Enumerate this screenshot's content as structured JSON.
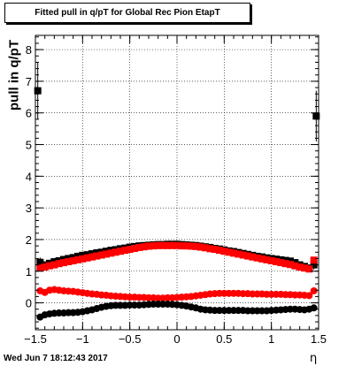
{
  "title": "Fitted pull in q/pT for Global Rec Pion EtapT",
  "timestamp": "Wed Jun  7 18:12:43 2017",
  "chart_data": {
    "type": "scatter",
    "xlabel": "η",
    "ylabel": "pull in q/pT",
    "xlim": [
      -1.5,
      1.5
    ],
    "ylim": [
      -0.85,
      8.45
    ],
    "grid": true,
    "xticks": [
      -1.5,
      -1,
      -0.5,
      0,
      0.5,
      1,
      1.5
    ],
    "xtick_labels": [
      "−1.5",
      "−1",
      "−0.5",
      "0",
      "0.5",
      "1",
      "1.5"
    ],
    "yticks": [
      0,
      1,
      2,
      3,
      4,
      5,
      6,
      7,
      8
    ],
    "ytick_labels": [
      "0",
      "1",
      "2",
      "3",
      "4",
      "5",
      "6",
      "7",
      "8"
    ],
    "series": [
      {
        "color": "#000000",
        "marker": "square",
        "x": [
          -1.45,
          -1.4,
          -1.35,
          -1.3,
          -1.25,
          -1.2,
          -1.15,
          -1.1,
          -1.05,
          -1.0,
          -0.95,
          -0.9,
          -0.85,
          -0.8,
          -0.75,
          -0.7,
          -0.65,
          -0.6,
          -0.55,
          -0.5,
          -0.45,
          -0.4,
          -0.35,
          -0.3,
          -0.25,
          -0.2,
          -0.15,
          -0.1,
          -0.05,
          0.0,
          0.05,
          0.1,
          0.15,
          0.2,
          0.25,
          0.3,
          0.35,
          0.4,
          0.45,
          0.5,
          0.55,
          0.6,
          0.65,
          0.7,
          0.75,
          0.8,
          0.85,
          0.9,
          0.95,
          1.0,
          1.05,
          1.1,
          1.15,
          1.2,
          1.25,
          1.3,
          1.35,
          1.4,
          1.45
        ],
        "y": [
          1.28,
          1.2,
          1.25,
          1.3,
          1.33,
          1.37,
          1.4,
          1.43,
          1.47,
          1.5,
          1.52,
          1.55,
          1.58,
          1.6,
          1.63,
          1.66,
          1.68,
          1.71,
          1.73,
          1.76,
          1.78,
          1.8,
          1.81,
          1.82,
          1.83,
          1.84,
          1.84,
          1.85,
          1.85,
          1.85,
          1.84,
          1.83,
          1.82,
          1.81,
          1.79,
          1.77,
          1.75,
          1.72,
          1.7,
          1.67,
          1.64,
          1.62,
          1.59,
          1.56,
          1.53,
          1.5,
          1.47,
          1.45,
          1.42,
          1.4,
          1.38,
          1.36,
          1.34,
          1.32,
          1.27,
          1.2,
          1.15,
          1.1,
          1.2
        ],
        "y_err": [
          0.15,
          0.06,
          0.05,
          0.05,
          0.05,
          0.05,
          0.04,
          0.04,
          0.04,
          0.04,
          0.04,
          0.04,
          0.04,
          0.04,
          0.04,
          0.04,
          0.04,
          0.04,
          0.04,
          0.04,
          0.04,
          0.04,
          0.04,
          0.04,
          0.04,
          0.04,
          0.04,
          0.04,
          0.04,
          0.04,
          0.04,
          0.04,
          0.04,
          0.04,
          0.04,
          0.04,
          0.04,
          0.04,
          0.04,
          0.04,
          0.04,
          0.04,
          0.04,
          0.04,
          0.04,
          0.04,
          0.04,
          0.04,
          0.04,
          0.04,
          0.04,
          0.04,
          0.04,
          0.04,
          0.05,
          0.05,
          0.05,
          0.06,
          0.15
        ]
      },
      {
        "color": "#ff0000",
        "marker": "square",
        "x": [
          -1.45,
          -1.4,
          -1.35,
          -1.3,
          -1.25,
          -1.2,
          -1.15,
          -1.1,
          -1.05,
          -1.0,
          -0.95,
          -0.9,
          -0.85,
          -0.8,
          -0.75,
          -0.7,
          -0.65,
          -0.6,
          -0.55,
          -0.5,
          -0.45,
          -0.4,
          -0.35,
          -0.3,
          -0.25,
          -0.2,
          -0.15,
          -0.1,
          -0.05,
          0.0,
          0.05,
          0.1,
          0.15,
          0.2,
          0.25,
          0.3,
          0.35,
          0.4,
          0.45,
          0.5,
          0.55,
          0.6,
          0.65,
          0.7,
          0.75,
          0.8,
          0.85,
          0.9,
          0.95,
          1.0,
          1.05,
          1.1,
          1.15,
          1.2,
          1.25,
          1.3,
          1.35,
          1.4,
          1.45
        ],
        "y": [
          1.1,
          1.13,
          1.17,
          1.2,
          1.24,
          1.27,
          1.3,
          1.33,
          1.36,
          1.39,
          1.42,
          1.45,
          1.48,
          1.51,
          1.54,
          1.57,
          1.6,
          1.63,
          1.66,
          1.69,
          1.72,
          1.75,
          1.77,
          1.79,
          1.8,
          1.81,
          1.81,
          1.81,
          1.81,
          1.81,
          1.8,
          1.8,
          1.79,
          1.78,
          1.76,
          1.74,
          1.71,
          1.69,
          1.66,
          1.63,
          1.6,
          1.57,
          1.54,
          1.51,
          1.48,
          1.45,
          1.42,
          1.39,
          1.36,
          1.33,
          1.3,
          1.27,
          1.24,
          1.21,
          1.17,
          1.13,
          1.1,
          1.07,
          1.35
        ],
        "y_err": [
          0.05,
          0.04,
          0.04,
          0.04,
          0.04,
          0.04,
          0.04,
          0.04,
          0.04,
          0.04,
          0.04,
          0.04,
          0.04,
          0.04,
          0.04,
          0.04,
          0.04,
          0.04,
          0.04,
          0.04,
          0.04,
          0.04,
          0.04,
          0.04,
          0.04,
          0.04,
          0.04,
          0.04,
          0.04,
          0.04,
          0.04,
          0.04,
          0.04,
          0.04,
          0.04,
          0.04,
          0.04,
          0.04,
          0.04,
          0.04,
          0.04,
          0.04,
          0.04,
          0.04,
          0.04,
          0.04,
          0.04,
          0.04,
          0.04,
          0.04,
          0.04,
          0.04,
          0.04,
          0.04,
          0.04,
          0.04,
          0.04,
          0.04,
          0.05
        ]
      },
      {
        "color": "#ff0000",
        "marker": "circle",
        "x": [
          -1.45,
          -1.4,
          -1.35,
          -1.3,
          -1.25,
          -1.2,
          -1.15,
          -1.1,
          -1.05,
          -1.0,
          -0.95,
          -0.9,
          -0.85,
          -0.8,
          -0.75,
          -0.7,
          -0.65,
          -0.6,
          -0.55,
          -0.5,
          -0.45,
          -0.4,
          -0.35,
          -0.3,
          -0.25,
          -0.2,
          -0.15,
          -0.1,
          -0.05,
          0.0,
          0.05,
          0.1,
          0.15,
          0.2,
          0.25,
          0.3,
          0.35,
          0.4,
          0.45,
          0.5,
          0.55,
          0.6,
          0.65,
          0.7,
          0.75,
          0.8,
          0.85,
          0.9,
          0.95,
          1.0,
          1.05,
          1.1,
          1.15,
          1.2,
          1.25,
          1.3,
          1.35,
          1.4,
          1.45
        ],
        "y": [
          0.38,
          0.33,
          0.4,
          0.42,
          0.4,
          0.38,
          0.37,
          0.36,
          0.34,
          0.32,
          0.3,
          0.28,
          0.27,
          0.25,
          0.24,
          0.22,
          0.21,
          0.2,
          0.19,
          0.18,
          0.18,
          0.17,
          0.17,
          0.16,
          0.16,
          0.15,
          0.15,
          0.16,
          0.16,
          0.17,
          0.18,
          0.19,
          0.2,
          0.22,
          0.24,
          0.26,
          0.28,
          0.29,
          0.3,
          0.3,
          0.3,
          0.3,
          0.3,
          0.29,
          0.29,
          0.28,
          0.28,
          0.28,
          0.27,
          0.27,
          0.27,
          0.27,
          0.26,
          0.26,
          0.25,
          0.25,
          0.24,
          0.23,
          0.38
        ],
        "y_err": [
          0.03,
          0.03,
          0.03,
          0.03,
          0.03,
          0.03,
          0.03,
          0.03,
          0.03,
          0.03,
          0.03,
          0.03,
          0.03,
          0.03,
          0.03,
          0.03,
          0.03,
          0.03,
          0.03,
          0.03,
          0.03,
          0.03,
          0.03,
          0.03,
          0.03,
          0.03,
          0.03,
          0.03,
          0.03,
          0.03,
          0.03,
          0.03,
          0.03,
          0.03,
          0.03,
          0.03,
          0.03,
          0.03,
          0.03,
          0.03,
          0.03,
          0.03,
          0.03,
          0.03,
          0.03,
          0.03,
          0.03,
          0.03,
          0.03,
          0.03,
          0.03,
          0.03,
          0.03,
          0.03,
          0.03,
          0.03,
          0.03,
          0.03,
          0.03
        ]
      },
      {
        "color": "#000000",
        "marker": "circle",
        "x": [
          -1.45,
          -1.4,
          -1.35,
          -1.3,
          -1.25,
          -1.2,
          -1.15,
          -1.1,
          -1.05,
          -1.0,
          -0.95,
          -0.9,
          -0.85,
          -0.8,
          -0.75,
          -0.7,
          -0.65,
          -0.6,
          -0.55,
          -0.5,
          -0.45,
          -0.4,
          -0.35,
          -0.3,
          -0.25,
          -0.2,
          -0.15,
          -0.1,
          -0.05,
          0.0,
          0.05,
          0.1,
          0.15,
          0.2,
          0.25,
          0.3,
          0.35,
          0.4,
          0.45,
          0.5,
          0.55,
          0.6,
          0.65,
          0.7,
          0.75,
          0.8,
          0.85,
          0.9,
          0.95,
          1.0,
          1.05,
          1.1,
          1.15,
          1.2,
          1.25,
          1.3,
          1.35,
          1.4,
          1.45
        ],
        "y": [
          -0.45,
          -0.38,
          -0.35,
          -0.33,
          -0.32,
          -0.32,
          -0.31,
          -0.31,
          -0.3,
          -0.28,
          -0.25,
          -0.22,
          -0.18,
          -0.14,
          -0.11,
          -0.09,
          -0.08,
          -0.08,
          -0.08,
          -0.07,
          -0.07,
          -0.07,
          -0.06,
          -0.05,
          -0.04,
          -0.04,
          -0.04,
          -0.04,
          -0.05,
          -0.06,
          -0.08,
          -0.1,
          -0.13,
          -0.16,
          -0.2,
          -0.22,
          -0.23,
          -0.24,
          -0.24,
          -0.24,
          -0.24,
          -0.24,
          -0.24,
          -0.24,
          -0.25,
          -0.25,
          -0.25,
          -0.25,
          -0.25,
          -0.24,
          -0.23,
          -0.22,
          -0.21,
          -0.2,
          -0.2,
          -0.21,
          -0.22,
          -0.2,
          -0.16
        ],
        "y_err": [
          0.04,
          0.03,
          0.03,
          0.03,
          0.03,
          0.03,
          0.03,
          0.03,
          0.03,
          0.03,
          0.03,
          0.03,
          0.03,
          0.03,
          0.03,
          0.03,
          0.03,
          0.03,
          0.03,
          0.03,
          0.03,
          0.03,
          0.03,
          0.03,
          0.03,
          0.03,
          0.03,
          0.03,
          0.03,
          0.03,
          0.03,
          0.03,
          0.03,
          0.03,
          0.03,
          0.03,
          0.03,
          0.03,
          0.03,
          0.03,
          0.03,
          0.03,
          0.03,
          0.03,
          0.03,
          0.03,
          0.03,
          0.03,
          0.03,
          0.03,
          0.03,
          0.03,
          0.03,
          0.03,
          0.03,
          0.03,
          0.03,
          0.03,
          0.04
        ]
      },
      {
        "color": "#000000",
        "marker": "square",
        "x": [
          -1.475,
          1.475
        ],
        "y": [
          6.7,
          5.9
        ],
        "y_err": [
          0.9,
          0.8
        ]
      }
    ]
  }
}
